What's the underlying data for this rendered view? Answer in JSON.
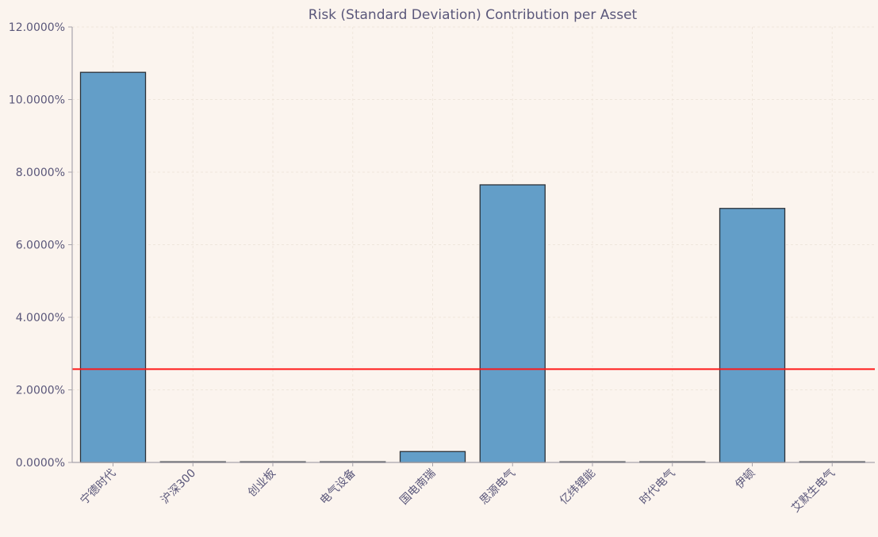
{
  "chart_data": {
    "type": "bar",
    "title": "Risk (Standard Deviation) Contribution per Asset",
    "xlabel": "",
    "ylabel": "",
    "categories": [
      "宁德时代",
      "沪深300",
      "创业板",
      "电气设备",
      "国电南瑞",
      "思源电气",
      "亿纬锂能",
      "时代电气",
      "伊顿",
      "艾默生电气"
    ],
    "values": [
      10.75,
      0.0,
      0.0,
      0.0,
      0.3,
      7.65,
      0.0,
      0.0,
      7.0,
      0.0
    ],
    "value_format": "percent_4dp",
    "yticks": [
      0,
      2,
      4,
      6,
      8,
      10,
      12
    ],
    "ytick_labels": [
      "0.0000%",
      "2.0000%",
      "4.0000%",
      "6.0000%",
      "8.0000%",
      "10.0000%",
      "12.0000%"
    ],
    "ylim": [
      0,
      12
    ],
    "reference_line": {
      "value": 2.57,
      "color": "#ff1a1a"
    },
    "grid": true,
    "legend": "none",
    "colors": {
      "background": "#fbf4ee",
      "bar_fill": "#639ec8",
      "bar_edge": "#2b3138",
      "axis": "#a8a5ad",
      "text": "#5a577a",
      "grid": "#efe6dc"
    }
  }
}
